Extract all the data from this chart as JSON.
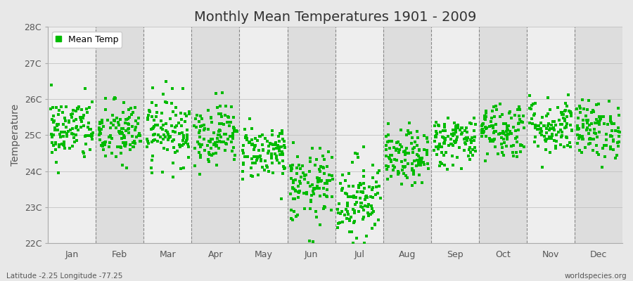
{
  "title": "Monthly Mean Temperatures 1901 - 2009",
  "ylabel": "Temperature",
  "xlabel_labels": [
    "Jan",
    "Feb",
    "Mar",
    "Apr",
    "May",
    "Jun",
    "Jul",
    "Aug",
    "Sep",
    "Oct",
    "Nov",
    "Dec"
  ],
  "subtitle": "Latitude -2.25 Longitude -77.25",
  "watermark": "worldspecies.org",
  "ylim": [
    22.0,
    28.0
  ],
  "ytick_labels": [
    "22C",
    "23C",
    "24C",
    "25C",
    "26C",
    "27C",
    "28C"
  ],
  "ytick_values": [
    22,
    23,
    24,
    25,
    26,
    27,
    28
  ],
  "dot_color": "#00bb00",
  "legend_label": "Mean Temp",
  "background_color": "#e8e8e8",
  "plot_bg_color": "#e8e8e8",
  "band_light": "#eeeeee",
  "band_dark": "#dddddd",
  "n_years": 109,
  "month_means": [
    25.15,
    25.05,
    25.15,
    25.05,
    24.55,
    23.55,
    23.25,
    24.35,
    24.85,
    25.15,
    25.25,
    25.15
  ],
  "month_stds": [
    0.45,
    0.45,
    0.48,
    0.43,
    0.38,
    0.52,
    0.58,
    0.38,
    0.35,
    0.4,
    0.4,
    0.4
  ],
  "title_fontsize": 14,
  "axis_fontsize": 10,
  "tick_fontsize": 9,
  "dot_size": 5
}
